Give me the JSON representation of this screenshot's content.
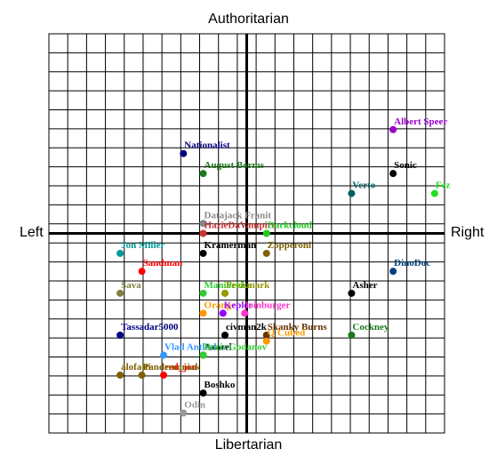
{
  "axes": {
    "top": "Authoritarian",
    "bottom": "Libertarian",
    "left": "Left",
    "right": "Right"
  },
  "chart_data": {
    "type": "scatter",
    "xlim": [
      -10,
      10
    ],
    "ylim": [
      -10,
      10
    ],
    "grid": true,
    "points": [
      {
        "name": "Albert Speer",
        "x": 7.4,
        "y": 5.2,
        "color": "#9900cc"
      },
      {
        "name": "Sonic",
        "x": 7.4,
        "y": 3.0,
        "color": "#000000"
      },
      {
        "name": "Nationalist",
        "x": -3.2,
        "y": 4.0,
        "color": "#000080"
      },
      {
        "name": "August Borms",
        "x": -2.2,
        "y": 3.0,
        "color": "#1a7a1a"
      },
      {
        "name": "Verto",
        "x": 5.3,
        "y": 2.0,
        "color": "#006060"
      },
      {
        "name": "Fez",
        "x": 9.5,
        "y": 2.0,
        "color": "#22dd22"
      },
      {
        "name": "Datajack Franit",
        "x": -2.2,
        "y": 0.5,
        "color": "#888888"
      },
      {
        "name": "HazieDaVampire",
        "x": -2.2,
        "y": 0.0,
        "color": "#cc3333"
      },
      {
        "name": "Darkcloud",
        "x": 1.0,
        "y": 0.0,
        "color": "#22cc22"
      },
      {
        "name": "Jon Miller",
        "x": -6.4,
        "y": -1.0,
        "color": "#009999"
      },
      {
        "name": "Kramerman",
        "x": -2.2,
        "y": -1.0,
        "color": "#000000"
      },
      {
        "name": "Zopperoni",
        "x": 1.0,
        "y": -1.0,
        "color": "#806000"
      },
      {
        "name": "Sandman",
        "x": -5.3,
        "y": -1.9,
        "color": "#ff0000"
      },
      {
        "name": "DinoDoc",
        "x": 7.4,
        "y": -1.9,
        "color": "#004080"
      },
      {
        "name": "Sava",
        "x": -6.4,
        "y": -3.0,
        "color": "#808040"
      },
      {
        "name": "Maniac",
        "x": -2.2,
        "y": -3.0,
        "color": "#33cc33"
      },
      {
        "name": "Pekka",
        "x": -1.1,
        "y": -3.0,
        "color": "#33cc33"
      },
      {
        "name": "Freismark",
        "x": -1.1,
        "y": -3.0,
        "color": "#999900"
      },
      {
        "name": "Asher",
        "x": 5.3,
        "y": -3.0,
        "color": "#000000"
      },
      {
        "name": "Orange",
        "x": -2.2,
        "y": -4.0,
        "color": "#ff9900"
      },
      {
        "name": "Kepler",
        "x": -1.2,
        "y": -4.0,
        "color": "#9900ff"
      },
      {
        "name": "loinburger",
        "x": -0.1,
        "y": -4.0,
        "color": "#ff33cc"
      },
      {
        "name": "Tassadar5000",
        "x": -6.4,
        "y": -5.1,
        "color": "#000080"
      },
      {
        "name": "civman2k",
        "x": -1.1,
        "y": -5.1,
        "color": "#000000"
      },
      {
        "name": "Skanky Burns",
        "x": 1.0,
        "y": -5.1,
        "color": "#663300"
      },
      {
        "name": "Cockney",
        "x": 5.3,
        "y": -5.1,
        "color": "#1a7a1a"
      },
      {
        "name": "Q Cubed",
        "x": 1.0,
        "y": -5.4,
        "color": "#ff9900"
      },
      {
        "name": "Vlad Antlerkov",
        "x": -4.2,
        "y": -6.1,
        "color": "#3399ff"
      },
      {
        "name": "Azazel",
        "x": -2.2,
        "y": -6.1,
        "color": "#000000"
      },
      {
        "name": "Boris Godanov",
        "x": -2.2,
        "y": -6.1,
        "color": "#33cc33"
      },
      {
        "name": "alofatti",
        "x": -6.4,
        "y": -7.1,
        "color": "#806000"
      },
      {
        "name": "red_jon",
        "x": -4.2,
        "y": -7.1,
        "color": "#ff0000"
      },
      {
        "name": "Pandemoniak",
        "x": -5.3,
        "y": -7.1,
        "color": "#806000"
      },
      {
        "name": "Boshko",
        "x": -2.2,
        "y": -8.0,
        "color": "#000000"
      },
      {
        "name": "Odin",
        "x": -3.2,
        "y": -9.0,
        "color": "#999999"
      }
    ]
  }
}
